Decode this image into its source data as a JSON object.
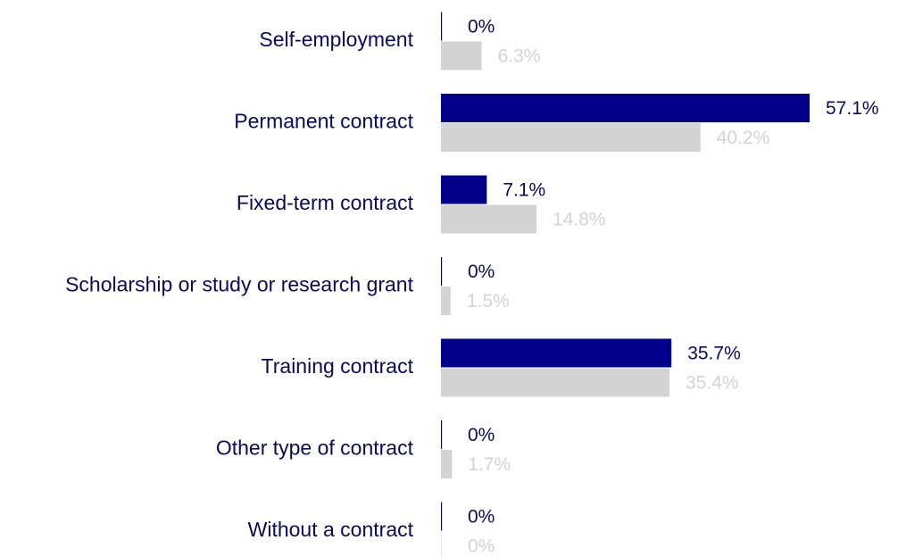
{
  "chart_data": {
    "type": "bar",
    "orientation": "horizontal",
    "grid": false,
    "legend": "none",
    "categories": [
      "Self-employment",
      "Permanent contract",
      "Fixed-term contract",
      "Scholarship or study or research grant",
      "Training contract",
      "Other type of contract",
      "Without a contract"
    ],
    "series": [
      {
        "values": [
          0,
          57.1,
          7.1,
          0,
          35.7,
          0,
          0
        ],
        "labels": [
          "0%",
          "57.1%",
          "7.1%",
          "0%",
          "35.7%",
          "0%",
          "0%"
        ],
        "color": "#00008b",
        "label_color": "#0a0a5a"
      },
      {
        "values": [
          6.3,
          40.2,
          14.8,
          1.5,
          35.4,
          1.7,
          0
        ],
        "labels": [
          "6.3%",
          "40.2%",
          "14.8%",
          "1.5%",
          "35.4%",
          "1.7%",
          "0%"
        ],
        "color": "#d3d3d3",
        "label_color": "#d3d3d3"
      }
    ],
    "xlim": [
      0,
      57.1
    ],
    "category_label_color": "#0a0a5a",
    "zero_line_color": "#0a0a5a"
  }
}
